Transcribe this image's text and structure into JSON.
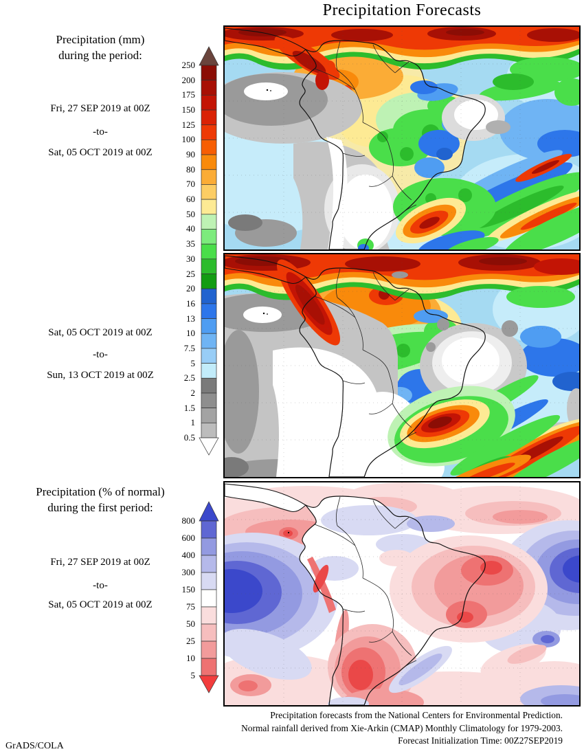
{
  "title": "Precipitation Forecasts",
  "sections": [
    {
      "heading_line1": "Precipitation (mm)",
      "heading_line2": "during the period:",
      "date_from": "Fri, 27 SEP 2019 at 00Z",
      "to_label": "-to-",
      "date_to": "Sat, 05 OCT 2019 at 00Z"
    },
    {
      "date_from": "Sat, 05 OCT 2019 at 00Z",
      "to_label": "-to-",
      "date_to": "Sun, 13 OCT 2019 at 00Z"
    },
    {
      "heading_line1": "Precipitation (% of normal)",
      "heading_line2": "during the first period:",
      "date_from": "Fri, 27 SEP 2019 at 00Z",
      "to_label": "-to-",
      "date_to": "Sat, 05 OCT 2019 at 00Z"
    }
  ],
  "colorbar_mm": {
    "tick_labels": [
      "250",
      "200",
      "175",
      "150",
      "125",
      "100",
      "90",
      "80",
      "70",
      "60",
      "50",
      "40",
      "35",
      "30",
      "25",
      "20",
      "16",
      "13",
      "10",
      "7.5",
      "5",
      "2.5",
      "2",
      "1.5",
      "1",
      "0.5"
    ],
    "top_triangle_color": "#6a443c",
    "segment_colors": [
      "#8b0d05",
      "#a81005",
      "#c31405",
      "#da2205",
      "#ee3905",
      "#f75e03",
      "#f98a0b",
      "#fbac36",
      "#fccd64",
      "#fdea94",
      "#bef2b4",
      "#7deb7d",
      "#4ade4a",
      "#2cbc2c",
      "#129c12",
      "#2163cf",
      "#2d76ea",
      "#4f9df2",
      "#6fb4f4",
      "#98cdf6",
      "#c2ecfa",
      "#7a7a7a",
      "#8e8e8e",
      "#a3a3a3",
      "#bcbcbc"
    ],
    "bottom_triangle_color": "#ffffff"
  },
  "colorbar_pct": {
    "tick_labels": [
      "800",
      "600",
      "400",
      "300",
      "150",
      "75",
      "50",
      "25",
      "10",
      "5"
    ],
    "top_triangle_color": "#3b48cb",
    "segment_colors": [
      "#5f67d3",
      "#939ae1",
      "#b5b9ea",
      "#d8daf3",
      "#ffffff",
      "#fadddd",
      "#f6bebe",
      "#f29b9b",
      "#ee7272"
    ],
    "bottom_triangle_color": "#f23d3d"
  },
  "footer": {
    "line1": "Precipitation forecasts from the National Centers for Environmental Prediction.",
    "line2": "Normal rainfall derived from Xie-Arkin (CMAP) Monthly Climatology for 1979-2003.",
    "line3": "Forecast Initialization Time: 00Z27SEP2019"
  },
  "credit": "GrADS/COLA"
}
